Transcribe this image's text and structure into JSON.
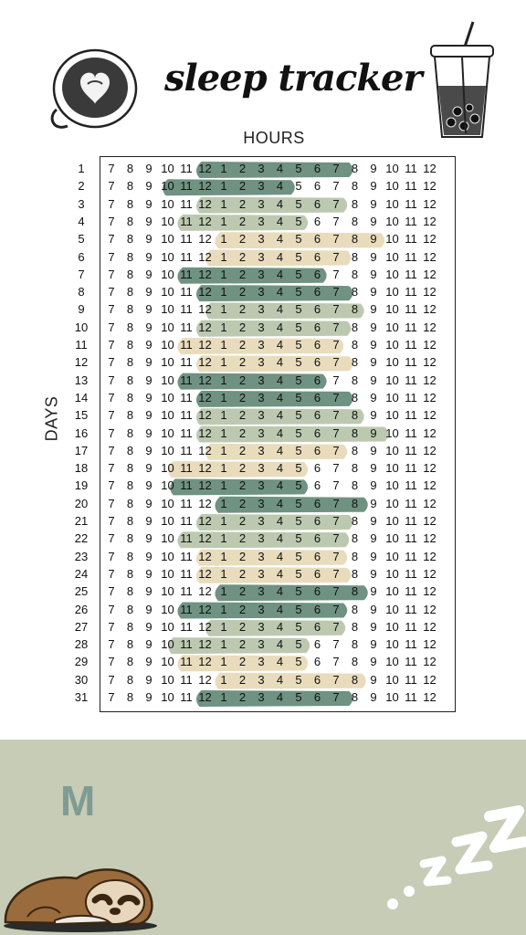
{
  "header": {
    "title": "sleep tracker",
    "hours_label": "HOURS",
    "days_label": "DAYS"
  },
  "hours": [
    "7",
    "8",
    "9",
    "10",
    "11",
    "12",
    "1",
    "2",
    "3",
    "4",
    "5",
    "6",
    "7",
    "8",
    "9",
    "10",
    "11",
    "12"
  ],
  "days": [
    "1",
    "2",
    "3",
    "4",
    "5",
    "6",
    "7",
    "8",
    "9",
    "10",
    "11",
    "12",
    "13",
    "14",
    "15",
    "16",
    "17",
    "18",
    "19",
    "20",
    "21",
    "22",
    "23",
    "24",
    "25",
    "26",
    "27",
    "28",
    "29",
    "30",
    "31"
  ],
  "colors": {
    "dark_green": "#6f9282",
    "light_green": "#bcc9b0",
    "beige": "#e8dcbc",
    "footer_bg": "#c7ccb6",
    "footer_letter": "#7f9c94"
  },
  "sleep_log": [
    {
      "day": 1,
      "start": 5,
      "end": 12.7,
      "color": "dark_green"
    },
    {
      "day": 2,
      "start": 3.2,
      "end": 9.6,
      "color": "dark_green"
    },
    {
      "day": 3,
      "start": 5,
      "end": 12.4,
      "color": "light_green"
    },
    {
      "day": 4,
      "start": 4,
      "end": 10.3,
      "color": "light_green"
    },
    {
      "day": 5,
      "start": 6,
      "end": 14.4,
      "color": "beige"
    },
    {
      "day": 6,
      "start": 5.5,
      "end": 12.6,
      "color": "beige"
    },
    {
      "day": 7,
      "start": 4,
      "end": 11.3,
      "color": "dark_green"
    },
    {
      "day": 8,
      "start": 5,
      "end": 12.7,
      "color": "dark_green"
    },
    {
      "day": 9,
      "start": 5.5,
      "end": 13.3,
      "color": "light_green"
    },
    {
      "day": 10,
      "start": 5,
      "end": 12.6,
      "color": "light_green"
    },
    {
      "day": 11,
      "start": 4,
      "end": 12.2,
      "color": "beige"
    },
    {
      "day": 12,
      "start": 5,
      "end": 12.7,
      "color": "beige"
    },
    {
      "day": 13,
      "start": 4,
      "end": 11.3,
      "color": "dark_green"
    },
    {
      "day": 14,
      "start": 5,
      "end": 12.7,
      "color": "dark_green"
    },
    {
      "day": 15,
      "start": 5,
      "end": 13.3,
      "color": "light_green"
    },
    {
      "day": 16,
      "start": 5,
      "end": 14.6,
      "color": "light_green"
    },
    {
      "day": 17,
      "start": 5.5,
      "end": 12.4,
      "color": "beige"
    },
    {
      "day": 18,
      "start": 3.5,
      "end": 10.3,
      "color": "beige"
    },
    {
      "day": 19,
      "start": 3.6,
      "end": 10.3,
      "color": "dark_green"
    },
    {
      "day": 20,
      "start": 6,
      "end": 13.5,
      "color": "dark_green"
    },
    {
      "day": 21,
      "start": 5,
      "end": 12.7,
      "color": "light_green"
    },
    {
      "day": 22,
      "start": 4,
      "end": 12.5,
      "color": "light_green"
    },
    {
      "day": 23,
      "start": 5,
      "end": 12.4,
      "color": "beige"
    },
    {
      "day": 24,
      "start": 5,
      "end": 12.6,
      "color": "beige"
    },
    {
      "day": 25,
      "start": 6,
      "end": 13.5,
      "color": "dark_green"
    },
    {
      "day": 26,
      "start": 4,
      "end": 12.4,
      "color": "dark_green"
    },
    {
      "day": 27,
      "start": 5.5,
      "end": 12.3,
      "color": "light_green"
    },
    {
      "day": 28,
      "start": 3.5,
      "end": 10.4,
      "color": "light_green"
    },
    {
      "day": 29,
      "start": 4,
      "end": 10.3,
      "color": "beige"
    },
    {
      "day": 30,
      "start": 6,
      "end": 13.4,
      "color": "beige"
    },
    {
      "day": 31,
      "start": 5,
      "end": 12.7,
      "color": "dark_green"
    }
  ],
  "decorations": {
    "top_left": "latte-art-coffee-cup-icon",
    "top_right": "bubble-tea-cup-icon",
    "bottom_left": "sleeping-sloth-icon",
    "bottom_right": "zzz-sleep-icon"
  },
  "footer": {
    "letter": "M"
  }
}
